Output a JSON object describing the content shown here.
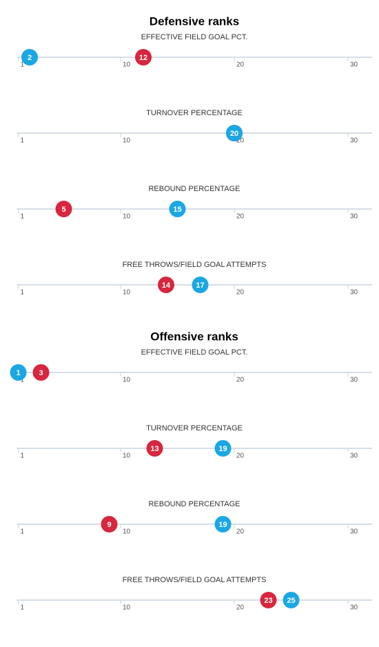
{
  "chart_data": [
    {
      "type": "dot",
      "title": "Defensive ranks",
      "xlim": [
        1,
        32
      ],
      "xticks": [
        1,
        10,
        20,
        30
      ],
      "panels": [
        {
          "label": "EFFECTIVE FIELD GOAL PCT.",
          "series": [
            {
              "color": "#d7263d",
              "values": [
                12
              ]
            },
            {
              "color": "#1aa7e4",
              "values": [
                2
              ]
            }
          ]
        },
        {
          "label": "TURNOVER PERCENTAGE",
          "series": [
            {
              "color": "#d7263d",
              "values": [
                20
              ]
            },
            {
              "color": "#1aa7e4",
              "values": [
                20
              ]
            }
          ]
        },
        {
          "label": "REBOUND PERCENTAGE",
          "series": [
            {
              "color": "#d7263d",
              "values": [
                5
              ]
            },
            {
              "color": "#1aa7e4",
              "values": [
                15
              ]
            }
          ]
        },
        {
          "label": "FREE THROWS/FIELD GOAL ATTEMPTS",
          "series": [
            {
              "color": "#d7263d",
              "values": [
                14
              ]
            },
            {
              "color": "#1aa7e4",
              "values": [
                17
              ]
            }
          ]
        }
      ]
    },
    {
      "type": "dot",
      "title": "Offensive ranks",
      "xlim": [
        1,
        32
      ],
      "xticks": [
        1,
        10,
        20,
        30
      ],
      "panels": [
        {
          "label": "EFFECTIVE FIELD GOAL PCT.",
          "series": [
            {
              "color": "#d7263d",
              "values": [
                3
              ]
            },
            {
              "color": "#1aa7e4",
              "values": [
                1
              ]
            }
          ]
        },
        {
          "label": "TURNOVER PERCENTAGE",
          "series": [
            {
              "color": "#d7263d",
              "values": [
                13
              ]
            },
            {
              "color": "#1aa7e4",
              "values": [
                19
              ]
            }
          ]
        },
        {
          "label": "REBOUND PERCENTAGE",
          "series": [
            {
              "color": "#d7263d",
              "values": [
                9
              ]
            },
            {
              "color": "#1aa7e4",
              "values": [
                19
              ]
            }
          ]
        },
        {
          "label": "FREE THROWS/FIELD GOAL ATTEMPTS",
          "series": [
            {
              "color": "#d7263d",
              "values": [
                23
              ]
            },
            {
              "color": "#1aa7e4",
              "values": [
                25
              ]
            }
          ]
        }
      ]
    }
  ]
}
